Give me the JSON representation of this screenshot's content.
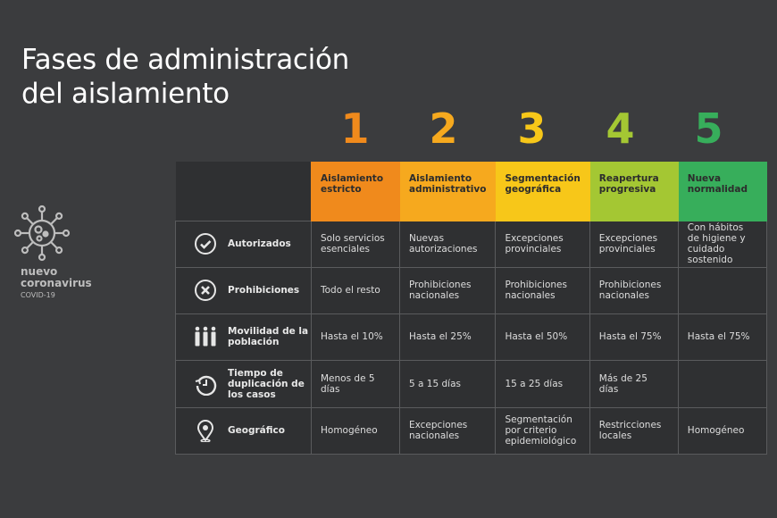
{
  "title_line1": "Fases de administración",
  "title_line2": "del aislamiento",
  "logo": {
    "line1": "nuevo",
    "line2": "coronavirus",
    "line3": "COVID-19",
    "icon": "virus-icon"
  },
  "phases": [
    {
      "number": "1",
      "name": "Aislamiento estricto",
      "color": "#f08a1c",
      "num_color": "#f08a1c"
    },
    {
      "number": "2",
      "name": "Aislamiento administrativo",
      "color": "#f6a91e",
      "num_color": "#f6a91e"
    },
    {
      "number": "3",
      "name": "Segmentación geográfica",
      "color": "#f7c719",
      "num_color": "#f7c719"
    },
    {
      "number": "4",
      "name": "Reapertura progresiva",
      "color": "#a4c733",
      "num_color": "#a4c733"
    },
    {
      "number": "5",
      "name": "Nueva normalidad",
      "color": "#37ae5b",
      "num_color": "#37ae5b"
    }
  ],
  "rows": [
    {
      "label": "Autorizados",
      "icon": "check-circle-icon",
      "cells": [
        "Solo servicios esenciales",
        "Nuevas autorizaciones",
        "Excepciones provinciales",
        "Excepciones provinciales",
        "Con hábitos de higiene y cuidado sostenido"
      ]
    },
    {
      "label": "Prohibiciones",
      "icon": "x-circle-icon",
      "cells": [
        "Todo el resto",
        "Prohibiciones nacionales",
        "Prohibiciones nacionales",
        "Prohibiciones nacionales",
        ""
      ]
    },
    {
      "label": "Movilidad de la población",
      "icon": "people-icon",
      "cells": [
        "Hasta el 10%",
        "Hasta el 25%",
        "Hasta el 50%",
        "Hasta el 75%",
        "Hasta el 75%"
      ]
    },
    {
      "label": "Tiempo de duplicación de los casos",
      "icon": "timer-icon",
      "cells": [
        "Menos de 5 días",
        "5 a 15 días",
        "15 a 25 días",
        "Más de 25 días",
        ""
      ]
    },
    {
      "label": "Geográfico",
      "icon": "location-pin-icon",
      "cells": [
        "Homogéneo",
        "Excepciones nacionales",
        "Segmentación por criterio epidemiológico",
        "Restricciones locales",
        "Homogéneo"
      ]
    }
  ]
}
